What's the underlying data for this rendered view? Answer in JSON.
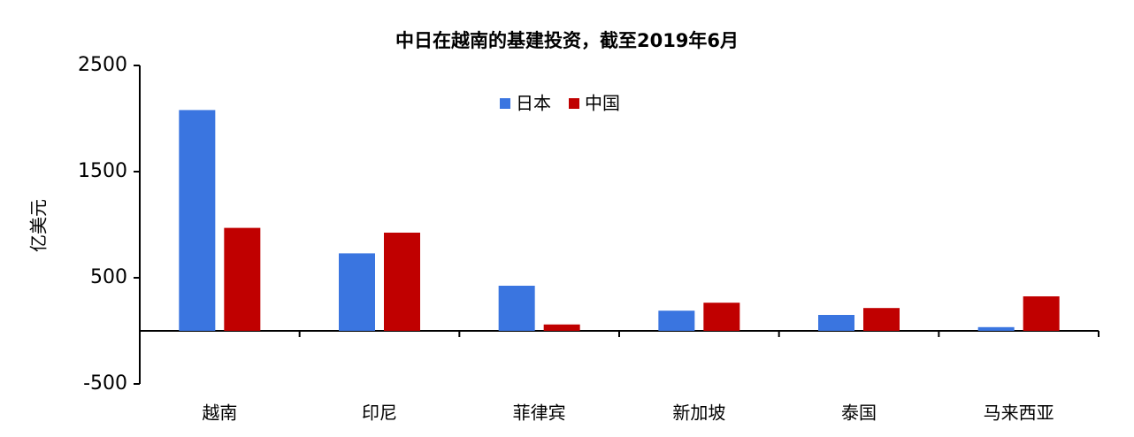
{
  "chart_data": {
    "type": "bar",
    "title": "中日在越南的基建投资，截至2019年6月",
    "y_label": "亿美元",
    "categories": [
      "越南",
      "印尼",
      "菲律宾",
      "新加坡",
      "泰国",
      "马来西亚"
    ],
    "series": [
      {
        "name": "日本",
        "color": "#3a75e0",
        "values": [
          2080,
          730,
          425,
          190,
          150,
          35
        ]
      },
      {
        "name": "中国",
        "color": "#c00000",
        "values": [
          970,
          925,
          60,
          265,
          215,
          325
        ]
      }
    ],
    "ylim": [
      -500,
      2500
    ],
    "yticks": [
      -500,
      500,
      1500,
      2500
    ],
    "legend": "top"
  }
}
